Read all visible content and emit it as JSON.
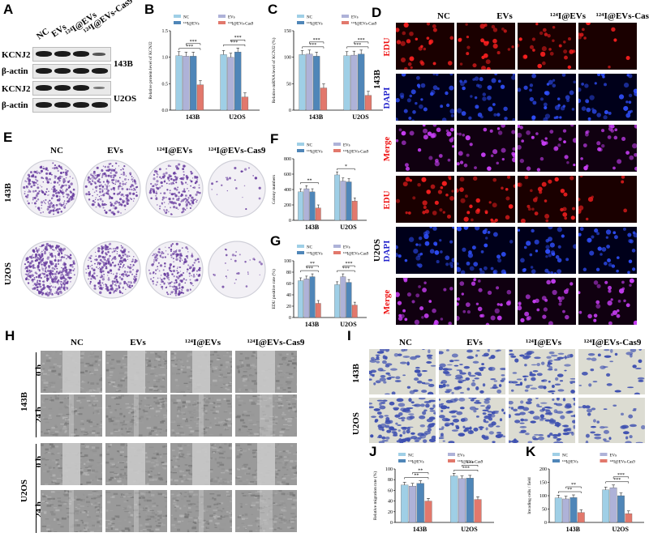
{
  "groups": [
    "NC",
    "EVs",
    "¹²⁴I@EVs",
    "¹²⁴I@EVs-Cas9"
  ],
  "cells": [
    "143B",
    "U2OS"
  ],
  "colors": {
    "NC": "#9fcfe6",
    "EVs": "#aeb2d8",
    "I124EVs": "#4f86b8",
    "Cas9": "#e2786c"
  },
  "panelA": {
    "label": "A",
    "cols": [
      "NC",
      "EVs",
      "¹²⁴I@EVs",
      "¹²⁴I@EVs-Cas9"
    ],
    "rows": [
      "KCNJ2",
      "β-actin",
      "KCNJ2",
      "β-actin"
    ],
    "cellLabels": [
      "143B",
      "U2OS"
    ]
  },
  "panelD": {
    "label": "D",
    "cols": [
      "NC",
      "EVs",
      "¹²⁴I@EVs",
      "¹²⁴I@EVs-Cas9"
    ],
    "stains": [
      "EDU",
      "DAPI",
      "Merge",
      "EDU",
      "DAPI",
      "Merge"
    ],
    "cells": [
      "143B",
      "U2OS"
    ]
  },
  "panelE": {
    "label": "E",
    "cols": [
      "NC",
      "EVs",
      "¹²⁴I@EVs",
      "¹²⁴I@EVs-Cas9"
    ],
    "rows": [
      "143B",
      "U2OS"
    ]
  },
  "panelH": {
    "label": "H",
    "cols": [
      "NC",
      "EVs",
      "¹²⁴I@EVs",
      "¹²⁴I@EVs-Cas9"
    ],
    "times": [
      "0 h",
      "24 h",
      "0 h",
      "24 h"
    ],
    "cells": [
      "143B",
      "U2OS"
    ]
  },
  "panelI": {
    "label": "I",
    "cols": [
      "NC",
      "EVs",
      "¹²⁴I@EVs",
      "¹²⁴I@EVs-Cas9"
    ],
    "rows": [
      "143B",
      "U2OS"
    ]
  },
  "chart_data": [
    {
      "id": "B",
      "type": "bar",
      "ylabel": "Relative protein level of KCNJ2",
      "categories": [
        "143B",
        "U2OS"
      ],
      "ylim": [
        0,
        1.5
      ],
      "yticks": [
        "0.0",
        "0.5",
        "1.0",
        "1.5"
      ],
      "series": [
        {
          "name": "NC",
          "values": [
            1.03,
            1.05
          ]
        },
        {
          "name": "EVs",
          "values": [
            1.02,
            1.0
          ]
        },
        {
          "name": "¹²⁴I@EVs",
          "values": [
            1.02,
            1.1
          ]
        },
        {
          "name": "¹²⁴I@EVs-Cas9",
          "values": [
            0.48,
            0.25
          ]
        }
      ],
      "annotations": [
        "***",
        "***",
        "***",
        "***"
      ]
    },
    {
      "id": "C",
      "type": "bar",
      "ylabel": "Relative mRNA level of KCNJ2 (%)",
      "categories": [
        "143B",
        "U2OS"
      ],
      "ylim": [
        0,
        150
      ],
      "yticks": [
        "0",
        "50",
        "100",
        "150"
      ],
      "series": [
        {
          "name": "NC",
          "values": [
            105,
            103
          ]
        },
        {
          "name": "EVs",
          "values": [
            106,
            104
          ]
        },
        {
          "name": "¹²⁴I@EVs",
          "values": [
            102,
            106
          ]
        },
        {
          "name": "¹²⁴I@EVs-Cas9",
          "values": [
            42,
            28
          ]
        }
      ],
      "annotations": [
        "***",
        "***",
        "***",
        "***"
      ]
    },
    {
      "id": "F",
      "type": "bar",
      "ylabel": "Colony numbers",
      "categories": [
        "143B",
        "U2OS"
      ],
      "ylim": [
        0,
        800
      ],
      "yticks": [
        "0",
        "200",
        "400",
        "600",
        "800"
      ],
      "series": [
        {
          "name": "NC",
          "values": [
            370,
            590
          ]
        },
        {
          "name": "EVs",
          "values": [
            410,
            510
          ]
        },
        {
          "name": "¹²⁴I@EVs",
          "values": [
            370,
            500
          ]
        },
        {
          "name": "¹²⁴I@EVs-Cas9",
          "values": [
            160,
            250
          ]
        }
      ],
      "annotations": [
        "**",
        "*"
      ]
    },
    {
      "id": "G",
      "type": "bar",
      "ylabel": "EDU positive rate (%)",
      "categories": [
        "143B",
        "U2OS"
      ],
      "ylim": [
        0,
        100
      ],
      "yticks": [
        "0",
        "20",
        "40",
        "60",
        "80",
        "100"
      ],
      "series": [
        {
          "name": "NC",
          "values": [
            65,
            58
          ]
        },
        {
          "name": "EVs",
          "values": [
            68,
            72
          ]
        },
        {
          "name": "¹²⁴I@EVs",
          "values": [
            72,
            62
          ]
        },
        {
          "name": "¹²⁴I@EVs-Cas9",
          "values": [
            25,
            22
          ]
        }
      ],
      "annotations": [
        "***",
        "**",
        "***",
        "***"
      ]
    },
    {
      "id": "J",
      "type": "bar",
      "ylabel": "Relative migration rate (%)",
      "categories": [
        "143B",
        "U2OS"
      ],
      "ylim": [
        0,
        100
      ],
      "yticks": [
        "0",
        "20",
        "40",
        "60",
        "80",
        "100"
      ],
      "series": [
        {
          "name": "NC",
          "values": [
            70,
            87
          ]
        },
        {
          "name": "EVs",
          "values": [
            68,
            82
          ]
        },
        {
          "name": "¹²⁴I@EVs",
          "values": [
            73,
            83
          ]
        },
        {
          "name": "¹²⁴I@EVs-Cas9",
          "values": [
            40,
            43
          ]
        }
      ],
      "annotations": [
        "**",
        "**",
        "***",
        "***"
      ]
    },
    {
      "id": "K",
      "type": "bar",
      "ylabel": "Invading cells / field",
      "categories": [
        "143B",
        "U2OS"
      ],
      "ylim": [
        0,
        200
      ],
      "yticks": [
        "0",
        "50",
        "100",
        "150",
        "200"
      ],
      "series": [
        {
          "name": "NC",
          "values": [
            92,
            122
          ]
        },
        {
          "name": "EVs",
          "values": [
            88,
            130
          ]
        },
        {
          "name": "¹²⁴I@EVs",
          "values": [
            93,
            100
          ]
        },
        {
          "name": "¹²⁴I@EVs-Cas9",
          "values": [
            37,
            33
          ]
        }
      ],
      "annotations": [
        "**",
        "**",
        "***",
        "***"
      ]
    }
  ]
}
